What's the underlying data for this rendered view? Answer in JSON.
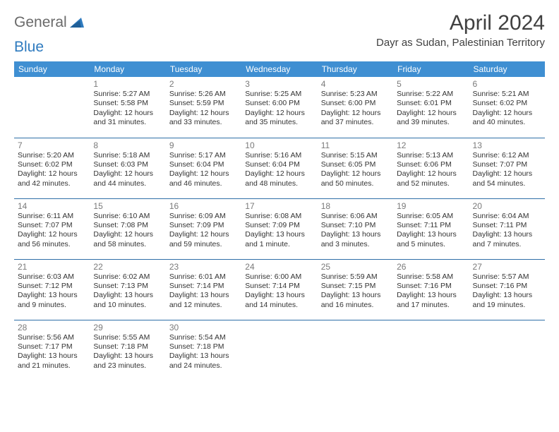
{
  "brand": {
    "part1": "General",
    "part2": "Blue"
  },
  "title": "April 2024",
  "location": "Dayr as Sudan, Palestinian Territory",
  "colors": {
    "header_bg": "#3f8fd2",
    "header_text": "#ffffff",
    "row_border": "#2f6fa8",
    "daynum": "#7a7a7a",
    "body_text": "#333333",
    "title_text": "#404040",
    "logo_gray": "#6a6a6a",
    "logo_blue": "#2f7bbf",
    "background": "#ffffff"
  },
  "typography": {
    "title_fontsize": 30,
    "location_fontsize": 15,
    "weekday_fontsize": 12,
    "daynum_fontsize": 12,
    "body_fontsize": 10.5
  },
  "layout": {
    "first_weekday_offset": 1
  },
  "weekdays": [
    "Sunday",
    "Monday",
    "Tuesday",
    "Wednesday",
    "Thursday",
    "Friday",
    "Saturday"
  ],
  "days": [
    {
      "n": "1",
      "sunrise": "5:27 AM",
      "sunset": "5:58 PM",
      "daylight": "12 hours and 31 minutes."
    },
    {
      "n": "2",
      "sunrise": "5:26 AM",
      "sunset": "5:59 PM",
      "daylight": "12 hours and 33 minutes."
    },
    {
      "n": "3",
      "sunrise": "5:25 AM",
      "sunset": "6:00 PM",
      "daylight": "12 hours and 35 minutes."
    },
    {
      "n": "4",
      "sunrise": "5:23 AM",
      "sunset": "6:00 PM",
      "daylight": "12 hours and 37 minutes."
    },
    {
      "n": "5",
      "sunrise": "5:22 AM",
      "sunset": "6:01 PM",
      "daylight": "12 hours and 39 minutes."
    },
    {
      "n": "6",
      "sunrise": "5:21 AM",
      "sunset": "6:02 PM",
      "daylight": "12 hours and 40 minutes."
    },
    {
      "n": "7",
      "sunrise": "5:20 AM",
      "sunset": "6:02 PM",
      "daylight": "12 hours and 42 minutes."
    },
    {
      "n": "8",
      "sunrise": "5:18 AM",
      "sunset": "6:03 PM",
      "daylight": "12 hours and 44 minutes."
    },
    {
      "n": "9",
      "sunrise": "5:17 AM",
      "sunset": "6:04 PM",
      "daylight": "12 hours and 46 minutes."
    },
    {
      "n": "10",
      "sunrise": "5:16 AM",
      "sunset": "6:04 PM",
      "daylight": "12 hours and 48 minutes."
    },
    {
      "n": "11",
      "sunrise": "5:15 AM",
      "sunset": "6:05 PM",
      "daylight": "12 hours and 50 minutes."
    },
    {
      "n": "12",
      "sunrise": "5:13 AM",
      "sunset": "6:06 PM",
      "daylight": "12 hours and 52 minutes."
    },
    {
      "n": "13",
      "sunrise": "6:12 AM",
      "sunset": "7:07 PM",
      "daylight": "12 hours and 54 minutes."
    },
    {
      "n": "14",
      "sunrise": "6:11 AM",
      "sunset": "7:07 PM",
      "daylight": "12 hours and 56 minutes."
    },
    {
      "n": "15",
      "sunrise": "6:10 AM",
      "sunset": "7:08 PM",
      "daylight": "12 hours and 58 minutes."
    },
    {
      "n": "16",
      "sunrise": "6:09 AM",
      "sunset": "7:09 PM",
      "daylight": "12 hours and 59 minutes."
    },
    {
      "n": "17",
      "sunrise": "6:08 AM",
      "sunset": "7:09 PM",
      "daylight": "13 hours and 1 minute."
    },
    {
      "n": "18",
      "sunrise": "6:06 AM",
      "sunset": "7:10 PM",
      "daylight": "13 hours and 3 minutes."
    },
    {
      "n": "19",
      "sunrise": "6:05 AM",
      "sunset": "7:11 PM",
      "daylight": "13 hours and 5 minutes."
    },
    {
      "n": "20",
      "sunrise": "6:04 AM",
      "sunset": "7:11 PM",
      "daylight": "13 hours and 7 minutes."
    },
    {
      "n": "21",
      "sunrise": "6:03 AM",
      "sunset": "7:12 PM",
      "daylight": "13 hours and 9 minutes."
    },
    {
      "n": "22",
      "sunrise": "6:02 AM",
      "sunset": "7:13 PM",
      "daylight": "13 hours and 10 minutes."
    },
    {
      "n": "23",
      "sunrise": "6:01 AM",
      "sunset": "7:14 PM",
      "daylight": "13 hours and 12 minutes."
    },
    {
      "n": "24",
      "sunrise": "6:00 AM",
      "sunset": "7:14 PM",
      "daylight": "13 hours and 14 minutes."
    },
    {
      "n": "25",
      "sunrise": "5:59 AM",
      "sunset": "7:15 PM",
      "daylight": "13 hours and 16 minutes."
    },
    {
      "n": "26",
      "sunrise": "5:58 AM",
      "sunset": "7:16 PM",
      "daylight": "13 hours and 17 minutes."
    },
    {
      "n": "27",
      "sunrise": "5:57 AM",
      "sunset": "7:16 PM",
      "daylight": "13 hours and 19 minutes."
    },
    {
      "n": "28",
      "sunrise": "5:56 AM",
      "sunset": "7:17 PM",
      "daylight": "13 hours and 21 minutes."
    },
    {
      "n": "29",
      "sunrise": "5:55 AM",
      "sunset": "7:18 PM",
      "daylight": "13 hours and 23 minutes."
    },
    {
      "n": "30",
      "sunrise": "5:54 AM",
      "sunset": "7:18 PM",
      "daylight": "13 hours and 24 minutes."
    }
  ]
}
